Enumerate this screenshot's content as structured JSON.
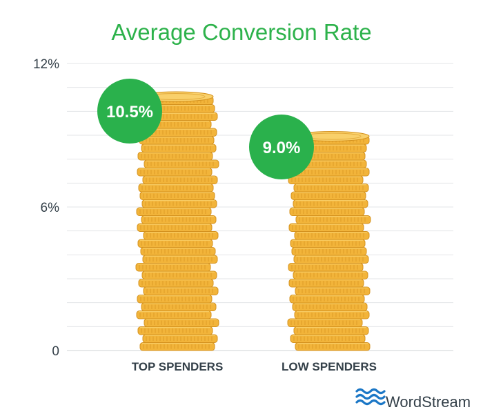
{
  "chart_data": {
    "type": "bar",
    "title": "Average Conversion Rate",
    "categories": [
      "TOP SPENDERS",
      "LOW SPENDERS"
    ],
    "values": [
      10.5,
      9.0
    ],
    "value_labels": [
      "10.5%",
      "9.0%"
    ],
    "yticks": [
      {
        "value": 0,
        "label": "0"
      },
      {
        "value": 6,
        "label": "6%"
      },
      {
        "value": 12,
        "label": "12%"
      }
    ],
    "ylim": [
      0,
      12
    ],
    "grid": true,
    "xlabel": "",
    "ylabel": "",
    "bar_style": "stacked gold coins"
  },
  "brand": {
    "name": "WordStream",
    "icon": "wordstream-wave-logo"
  },
  "colors": {
    "title": "#2db24b",
    "badge": "#2ab14c",
    "axis_text": "#333f48",
    "gridline": "#e3e5e7",
    "coin_fill": "#f2b43a",
    "coin_edge": "#d4921f",
    "coin_light": "#f9d06a",
    "logo": "#1b77c6"
  }
}
